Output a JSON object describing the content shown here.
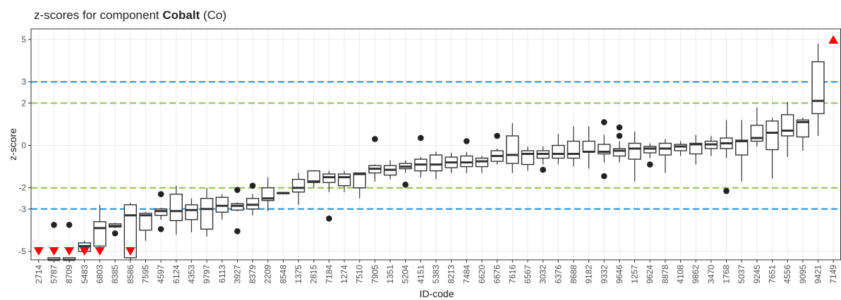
{
  "chart_data": {
    "type": "boxplot",
    "title_prefix": "z-scores for component ",
    "title_bold": "Cobalt",
    "title_suffix": " (Co)",
    "xlabel": "ID-code",
    "ylabel": "z-score",
    "ylim": [
      -5.4,
      5.5
    ],
    "yticks": [
      -5,
      -3,
      -2,
      0,
      2,
      3,
      5
    ],
    "grid": true,
    "reference_lines": [
      {
        "y": 3,
        "color": "#1f8fcf"
      },
      {
        "y": 2,
        "color": "#8bc34a"
      },
      {
        "y": -2,
        "color": "#8bc34a"
      },
      {
        "y": -3,
        "color": "#1f8fcf"
      }
    ],
    "colors": {
      "box": "#333333",
      "outlier": "#222222",
      "offscale": "#ff0000",
      "panel_border": "#333333",
      "grid": "#ebebeb"
    },
    "categories": [
      "2714",
      "5787",
      "8709",
      "5483",
      "6803",
      "8385",
      "8586",
      "7595",
      "4597",
      "6124",
      "4353",
      "9797",
      "6113",
      "3927",
      "8379",
      "2209",
      "8548",
      "1375",
      "2815",
      "7184",
      "1274",
      "7510",
      "7905",
      "1351",
      "5204",
      "4151",
      "5383",
      "8213",
      "7484",
      "6620",
      "6676",
      "7616",
      "6567",
      "3032",
      "6376",
      "8688",
      "9182",
      "9332",
      "9646",
      "1257",
      "9624",
      "8878",
      "4108",
      "9862",
      "3470",
      "1768",
      "5037",
      "9245",
      "7651",
      "4556",
      "9095",
      "9421",
      "7149"
    ],
    "boxes": [
      null,
      {
        "low": -5.4,
        "q1": -5.4,
        "med": -5.4,
        "q3": -5.3,
        "high": -5.3,
        "out": [
          -3.75
        ]
      },
      {
        "low": -5.4,
        "q1": -5.4,
        "med": -5.4,
        "q3": -5.3,
        "high": -5.3,
        "out": [
          -3.75
        ]
      },
      {
        "low": -5.1,
        "q1": -5.0,
        "med": -4.75,
        "q3": -4.6,
        "high": -4.5,
        "out": []
      },
      {
        "low": -5.0,
        "q1": -4.75,
        "med": -3.9,
        "q3": -3.6,
        "high": -2.8,
        "out": []
      },
      {
        "low": -3.9,
        "q1": -3.85,
        "med": -3.8,
        "q3": -3.7,
        "high": -3.65,
        "out": [
          -4.15
        ]
      },
      {
        "low": -5.4,
        "q1": -5.3,
        "med": -3.3,
        "q3": -2.8,
        "high": -2.7,
        "out": []
      },
      {
        "low": -4.5,
        "q1": -4.0,
        "med": -3.3,
        "q3": -3.2,
        "high": -3.15,
        "out": []
      },
      {
        "low": -3.5,
        "q1": -3.3,
        "med": -3.1,
        "q3": -3.0,
        "high": -2.95,
        "out": [
          -2.3,
          -3.95
        ]
      },
      {
        "low": -4.2,
        "q1": -3.55,
        "med": -3.1,
        "q3": -2.3,
        "high": -1.9,
        "out": []
      },
      {
        "low": -4.1,
        "q1": -3.5,
        "med": -3.05,
        "q3": -2.8,
        "high": -2.5,
        "out": []
      },
      {
        "low": -4.3,
        "q1": -3.95,
        "med": -3.0,
        "q3": -2.5,
        "high": -2.0,
        "out": []
      },
      {
        "low": -3.5,
        "q1": -3.15,
        "med": -2.85,
        "q3": -2.45,
        "high": -2.3,
        "out": []
      },
      {
        "low": -3.1,
        "q1": -3.05,
        "med": -2.85,
        "q3": -2.75,
        "high": -2.7,
        "out": [
          -2.1,
          -4.05
        ]
      },
      {
        "low": -3.3,
        "q1": -3.0,
        "med": -2.8,
        "q3": -2.5,
        "high": -2.3,
        "out": [
          -1.9
        ]
      },
      {
        "low": -3.1,
        "q1": -2.6,
        "med": -2.5,
        "q3": -2.0,
        "high": -1.5,
        "out": []
      },
      {
        "low": -2.3,
        "q1": -2.28,
        "med": -2.25,
        "q3": -2.22,
        "high": -2.2,
        "out": []
      },
      {
        "low": -2.8,
        "q1": -2.2,
        "med": -2.0,
        "q3": -1.6,
        "high": -1.3,
        "out": []
      },
      {
        "low": -2.0,
        "q1": -1.75,
        "med": -1.7,
        "q3": -1.2,
        "high": -1.2,
        "out": []
      },
      {
        "low": -2.2,
        "q1": -1.75,
        "med": -1.5,
        "q3": -1.35,
        "high": -1.2,
        "out": [
          -3.45
        ]
      },
      {
        "low": -2.2,
        "q1": -1.9,
        "med": -1.5,
        "q3": -1.35,
        "high": -1.2,
        "out": []
      },
      {
        "low": -2.5,
        "q1": -2.0,
        "med": -1.35,
        "q3": -1.3,
        "high": -1.3,
        "out": []
      },
      {
        "low": -1.7,
        "q1": -1.3,
        "med": -1.1,
        "q3": -0.95,
        "high": -0.9,
        "out": [
          0.3
        ]
      },
      {
        "low": -1.6,
        "q1": -1.4,
        "med": -1.15,
        "q3": -0.95,
        "high": -0.7,
        "out": []
      },
      {
        "low": -1.3,
        "q1": -1.1,
        "med": -1.0,
        "q3": -0.85,
        "high": -0.7,
        "out": [
          -1.85
        ]
      },
      {
        "low": -1.5,
        "q1": -1.2,
        "med": -0.9,
        "q3": -0.65,
        "high": -0.55,
        "out": [
          0.35
        ]
      },
      {
        "low": -1.6,
        "q1": -1.2,
        "med": -0.9,
        "q3": -0.45,
        "high": -0.3,
        "out": []
      },
      {
        "low": -1.3,
        "q1": -1.05,
        "med": -0.8,
        "q3": -0.55,
        "high": -0.35,
        "out": []
      },
      {
        "low": -1.3,
        "q1": -1.0,
        "med": -0.8,
        "q3": -0.5,
        "high": -0.3,
        "out": [
          0.2
        ]
      },
      {
        "low": -1.3,
        "q1": -1.0,
        "med": -0.75,
        "q3": -0.6,
        "high": -0.5,
        "out": []
      },
      {
        "low": -0.9,
        "q1": -0.75,
        "med": -0.5,
        "q3": -0.25,
        "high": -0.15,
        "out": [
          0.45
        ]
      },
      {
        "low": -1.3,
        "q1": -0.85,
        "med": -0.45,
        "q3": 0.45,
        "high": 1.05,
        "out": []
      },
      {
        "low": -1.2,
        "q1": -0.9,
        "med": -0.4,
        "q3": -0.25,
        "high": -0.05,
        "out": []
      },
      {
        "low": -0.9,
        "q1": -0.6,
        "med": -0.4,
        "q3": -0.25,
        "high": -0.05,
        "out": [
          -1.15
        ]
      },
      {
        "low": -0.9,
        "q1": -0.6,
        "med": -0.4,
        "q3": 0.0,
        "high": 0.55,
        "out": []
      },
      {
        "low": -1.0,
        "q1": -0.6,
        "med": -0.4,
        "q3": 0.2,
        "high": 0.9,
        "out": []
      },
      {
        "low": -1.1,
        "q1": -0.3,
        "med": -0.3,
        "q3": 0.2,
        "high": 0.9,
        "out": []
      },
      {
        "low": -0.8,
        "q1": -0.4,
        "med": -0.3,
        "q3": 0.05,
        "high": 0.5,
        "out": [
          1.1,
          -1.45
        ]
      },
      {
        "low": -0.8,
        "q1": -0.5,
        "med": -0.25,
        "q3": -0.15,
        "high": 0.2,
        "out": [
          0.85,
          0.45
        ]
      },
      {
        "low": -1.7,
        "q1": -0.65,
        "med": -0.15,
        "q3": 0.1,
        "high": 0.65,
        "out": []
      },
      {
        "low": -0.6,
        "q1": -0.35,
        "med": -0.15,
        "q3": -0.05,
        "high": 0.1,
        "out": [
          -0.9
        ]
      },
      {
        "low": -1.3,
        "q1": -0.45,
        "med": -0.15,
        "q3": 0.1,
        "high": 0.3,
        "out": []
      },
      {
        "low": -0.5,
        "q1": -0.25,
        "med": -0.05,
        "q3": 0.05,
        "high": 0.2,
        "out": []
      },
      {
        "low": -0.9,
        "q1": -0.4,
        "med": 0.05,
        "q3": 0.1,
        "high": 0.5,
        "out": []
      },
      {
        "low": -0.5,
        "q1": -0.15,
        "med": 0.05,
        "q3": 0.2,
        "high": 0.45,
        "out": []
      },
      {
        "low": -0.6,
        "q1": -0.15,
        "med": 0.1,
        "q3": 0.35,
        "high": 1.2,
        "out": [
          -2.15
        ]
      },
      {
        "low": -1.7,
        "q1": -0.45,
        "med": 0.2,
        "q3": 0.25,
        "high": 1.2,
        "out": []
      },
      {
        "low": -0.05,
        "q1": 0.2,
        "med": 0.35,
        "q3": 0.95,
        "high": 1.8,
        "out": []
      },
      {
        "low": -1.55,
        "q1": -0.2,
        "med": 0.6,
        "q3": 1.15,
        "high": 1.3,
        "out": []
      },
      {
        "low": -0.55,
        "q1": 0.45,
        "med": 0.7,
        "q3": 1.45,
        "high": 2.05,
        "out": []
      },
      {
        "low": -0.25,
        "q1": 0.4,
        "med": 1.1,
        "q3": 1.2,
        "high": 1.3,
        "out": []
      },
      {
        "low": 0.45,
        "q1": 1.5,
        "med": 2.1,
        "q3": 3.95,
        "high": 4.8,
        "out": []
      },
      null
    ],
    "offscale_low": [
      "2714",
      "5787",
      "8709",
      "5483",
      "6803",
      "8586"
    ],
    "offscale_high": [
      "7149"
    ]
  }
}
